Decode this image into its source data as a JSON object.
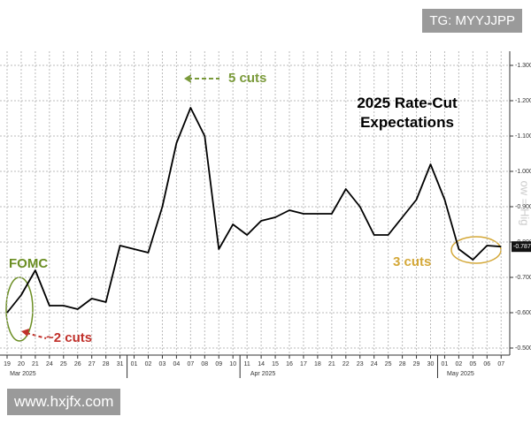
{
  "chart_data": {
    "type": "line",
    "title": "2025 Rate-Cut Expectations",
    "categories": [
      "19",
      "20",
      "21",
      "24",
      "25",
      "26",
      "27",
      "28",
      "31",
      "01",
      "02",
      "03",
      "04",
      "07",
      "08",
      "09",
      "10",
      "11",
      "14",
      "15",
      "16",
      "17",
      "18",
      "21",
      "22",
      "23",
      "24",
      "25",
      "28",
      "29",
      "30",
      "01",
      "02",
      "05",
      "06",
      "07"
    ],
    "month_labels": [
      "Mar 2025",
      "Apr 2025",
      "May 2025"
    ],
    "series": [
      {
        "name": "Rate-cut expectations",
        "color": "#000000",
        "values": [
          -0.6,
          -0.65,
          -0.72,
          -0.62,
          -0.62,
          -0.61,
          -0.64,
          -0.63,
          -0.79,
          -0.78,
          -0.77,
          -0.9,
          -1.08,
          -1.18,
          -1.1,
          -0.78,
          -0.85,
          -0.82,
          -0.86,
          -0.87,
          -0.89,
          -0.88,
          -0.88,
          -0.88,
          -0.95,
          -0.9,
          -0.82,
          -0.82,
          -0.87,
          -0.92,
          -1.02,
          -0.92,
          -0.78,
          -0.75,
          -0.79,
          -0.787
        ],
        "value_labels": [
          null,
          null,
          null,
          null,
          null,
          null,
          null,
          null,
          null,
          null,
          null,
          null,
          null,
          null,
          null,
          null,
          null,
          null,
          null,
          null,
          null,
          null,
          null,
          null,
          null,
          null,
          null,
          null,
          null,
          null,
          null,
          null,
          null,
          null,
          null,
          "-0.787"
        ]
      }
    ],
    "ylim": [
      -0.48,
      -1.32
    ],
    "yticks": [
      {
        "value": -0.5,
        "label": "-0.500"
      },
      {
        "value": -0.6,
        "label": "-0.600"
      },
      {
        "value": -0.7,
        "label": "-0.700"
      },
      {
        "value": -0.8,
        "label": "-0.800"
      },
      {
        "value": -0.9,
        "label": "-0.900"
      },
      {
        "value": -1.0,
        "label": "-1.000"
      },
      {
        "value": -1.1,
        "label": "-1.100"
      },
      {
        "value": -1.2,
        "label": "-1.200"
      },
      {
        "value": -1.3,
        "label": "-1.300"
      }
    ],
    "grid": true,
    "annotations": [
      {
        "text": "5 cuts",
        "color": "#7a9a3a"
      },
      {
        "text": "~2 cuts",
        "color": "#c0302a"
      },
      {
        "text": "3 cuts",
        "color": "#d4a838"
      },
      {
        "text": "FOMC",
        "color": "#6b8e23"
      }
    ],
    "axis_note": "ow = Hig",
    "watermarks": [
      "TG: MYYJJPP",
      "www.hxjfx.com"
    ]
  }
}
